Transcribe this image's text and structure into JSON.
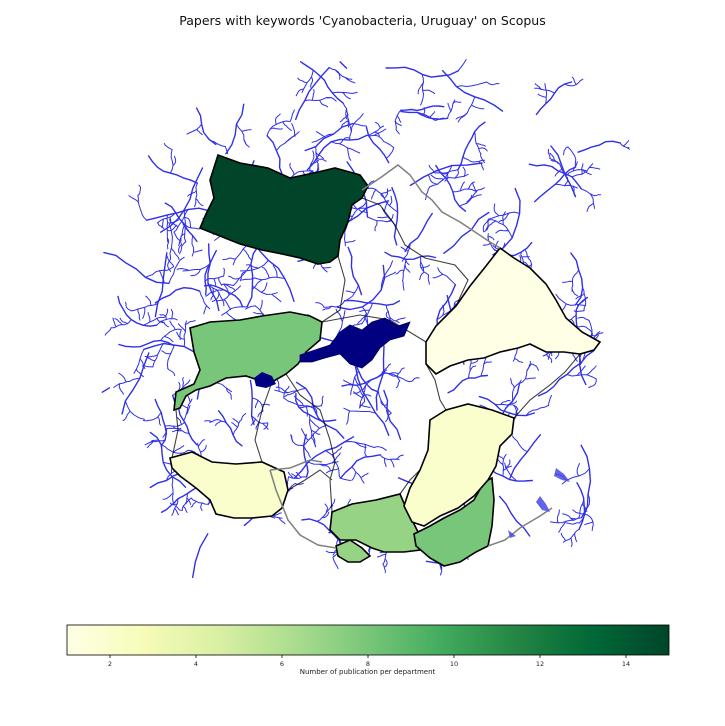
{
  "title": "Papers with keywords 'Cyanobacteria, Uruguay' on Scopus",
  "colorbar": {
    "label": "Number of publication per department",
    "min": 1,
    "max": 15,
    "ticks": [
      2,
      4,
      6,
      8,
      10,
      12,
      14
    ],
    "colormap": "YlGn",
    "stops": [
      "#ffffe5",
      "#f7fcb9",
      "#d9f0a3",
      "#addd8e",
      "#78c679",
      "#41ab5d",
      "#238443",
      "#006837",
      "#004529"
    ]
  },
  "colors": {
    "rivers": "#1a1ae6",
    "department_border": "#000000",
    "country_border": "#808080",
    "lake": "#000080"
  },
  "departments": [
    {
      "id": "artigas",
      "value": 15
    },
    {
      "id": "paysandu",
      "value": 8
    },
    {
      "id": "soriano",
      "value": 2
    },
    {
      "id": "montevideo",
      "value": 7
    },
    {
      "id": "canelones",
      "value": 7
    },
    {
      "id": "maldonado",
      "value": 8
    },
    {
      "id": "lavalleja",
      "value": 2
    },
    {
      "id": "treintaytres",
      "value": 1
    }
  ]
}
